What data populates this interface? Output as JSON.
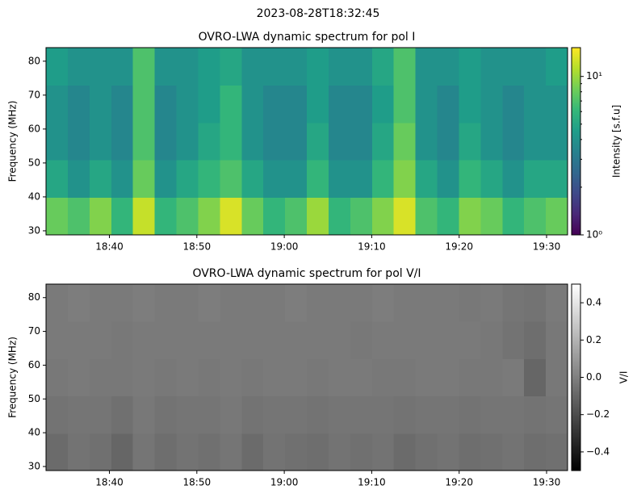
{
  "title": "2023-08-28T18:32:45",
  "chart_data": [
    {
      "type": "heatmap",
      "title": "OVRO-LWA dynamic spectrum for pol I",
      "ylabel": "Frequency (MHz)",
      "colorbar_label": "Intensity [s.f.u]",
      "colormap": "viridis",
      "color_log": true,
      "xlim": [
        1112.75,
        1172.4
      ],
      "xticks": [
        {
          "value": 1120,
          "label": "18:40"
        },
        {
          "value": 1130,
          "label": "18:50"
        },
        {
          "value": 1140,
          "label": "19:00"
        },
        {
          "value": 1150,
          "label": "19:10"
        },
        {
          "value": 1160,
          "label": "19:20"
        },
        {
          "value": 1170,
          "label": "19:30"
        }
      ],
      "ylim": [
        28.8,
        84.0
      ],
      "yticks": [
        30,
        40,
        50,
        60,
        70,
        80
      ],
      "clim": [
        1,
        15.2
      ],
      "cticks": [
        {
          "value": 1,
          "label": "10⁰"
        },
        {
          "value": 10,
          "label": "10¹"
        }
      ],
      "cminor": [
        2,
        3,
        4,
        5,
        6,
        7,
        8,
        9
      ],
      "z": [
        [
          8,
          7,
          9,
          6,
          12,
          6,
          7,
          9,
          13,
          8,
          6,
          7,
          10,
          6,
          7,
          9,
          13,
          7,
          6,
          9,
          8,
          6,
          7,
          8
        ],
        [
          5,
          4,
          5,
          4,
          8,
          4,
          5,
          6,
          7,
          5,
          4,
          4,
          6,
          4,
          4,
          6,
          9,
          5,
          4,
          6,
          5,
          4,
          5,
          5
        ],
        [
          4,
          3.5,
          4,
          3.5,
          7,
          3.5,
          4,
          5,
          6,
          4,
          3.5,
          3.5,
          5,
          3.5,
          3.5,
          5,
          8,
          4,
          3.5,
          5,
          4,
          3.5,
          4,
          4
        ],
        [
          4,
          3.5,
          4,
          3.5,
          7,
          3.5,
          4,
          4.5,
          6,
          4,
          3.5,
          3.5,
          4.5,
          3.5,
          3.5,
          4.5,
          7,
          4,
          3.5,
          4.5,
          4,
          3.5,
          4,
          4
        ],
        [
          4.5,
          4,
          4,
          4,
          7,
          4,
          4,
          4.5,
          5,
          4,
          4,
          4,
          4.5,
          4,
          4,
          5,
          7,
          4,
          4,
          4.5,
          4,
          4,
          4,
          4.5
        ]
      ]
    },
    {
      "type": "heatmap",
      "title": "OVRO-LWA dynamic spectrum for pol V/I",
      "ylabel": "Frequency (MHz)",
      "colorbar_label": "V/I",
      "colormap": "gray",
      "color_log": false,
      "xlim": [
        1112.75,
        1172.4
      ],
      "xticks": [
        {
          "value": 1120,
          "label": "18:40"
        },
        {
          "value": 1130,
          "label": "18:50"
        },
        {
          "value": 1140,
          "label": "19:00"
        },
        {
          "value": 1150,
          "label": "19:10"
        },
        {
          "value": 1160,
          "label": "19:20"
        },
        {
          "value": 1170,
          "label": "19:30"
        }
      ],
      "ylim": [
        28.8,
        84.0
      ],
      "yticks": [
        30,
        40,
        50,
        60,
        70,
        80
      ],
      "clim": [
        -0.5,
        0.5
      ],
      "cticks": [
        0.4,
        0.2,
        {
          "value": 0,
          "label": "0.0"
        },
        {
          "value": -0.2,
          "label": "−0.2"
        },
        {
          "value": -0.4,
          "label": "−0.4"
        }
      ],
      "cminor": [],
      "z": [
        [
          -0.08,
          -0.05,
          -0.06,
          -0.1,
          -0.04,
          -0.07,
          -0.05,
          -0.06,
          -0.04,
          -0.08,
          -0.05,
          -0.06,
          -0.07,
          -0.05,
          -0.06,
          -0.05,
          -0.08,
          -0.06,
          -0.05,
          -0.07,
          -0.06,
          -0.05,
          -0.07,
          -0.06
        ],
        [
          -0.05,
          -0.04,
          -0.04,
          -0.06,
          -0.03,
          -0.05,
          -0.04,
          -0.04,
          -0.03,
          -0.05,
          -0.04,
          -0.04,
          -0.05,
          -0.04,
          -0.04,
          -0.04,
          -0.05,
          -0.04,
          -0.04,
          -0.05,
          -0.04,
          -0.04,
          -0.05,
          -0.04
        ],
        [
          -0.03,
          -0.02,
          -0.03,
          -0.03,
          -0.02,
          -0.03,
          -0.02,
          -0.03,
          -0.02,
          -0.03,
          -0.02,
          -0.02,
          -0.03,
          -0.02,
          -0.02,
          -0.03,
          -0.03,
          -0.02,
          -0.02,
          -0.03,
          -0.03,
          -0.02,
          -0.1,
          -0.03
        ],
        [
          -0.02,
          -0.02,
          -0.02,
          -0.03,
          -0.02,
          -0.02,
          -0.02,
          -0.02,
          -0.02,
          -0.02,
          -0.02,
          -0.02,
          -0.02,
          -0.02,
          -0.03,
          -0.02,
          -0.02,
          -0.02,
          -0.02,
          -0.02,
          -0.03,
          -0.05,
          -0.07,
          -0.03
        ],
        [
          -0.02,
          -0.01,
          -0.02,
          -0.02,
          -0.01,
          -0.02,
          -0.02,
          -0.01,
          -0.02,
          -0.02,
          -0.02,
          -0.01,
          -0.02,
          -0.02,
          -0.02,
          -0.01,
          -0.02,
          -0.02,
          -0.02,
          -0.03,
          -0.02,
          -0.04,
          -0.05,
          -0.02
        ]
      ]
    }
  ]
}
